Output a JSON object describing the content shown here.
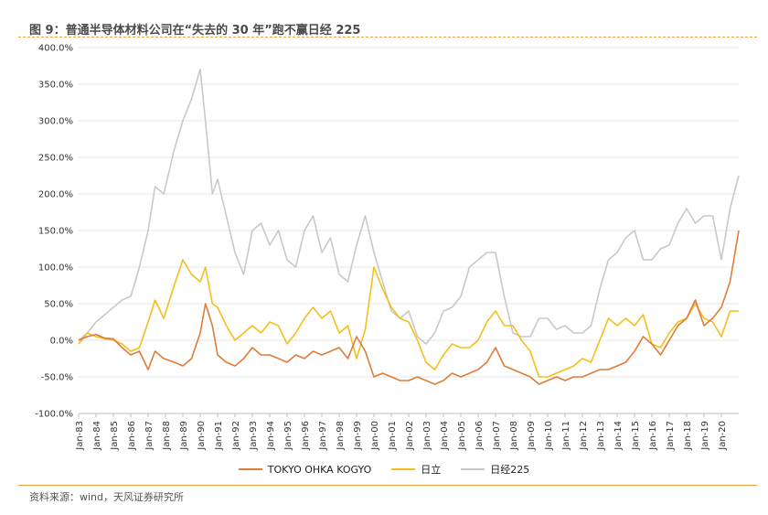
{
  "title": "图 9：普通半导体材料公司在“失去的 30 年”跑不赢日经 225",
  "source": "资料来源：wind，天风证券研究所",
  "chart_data": {
    "type": "line",
    "ylim": [
      -100,
      400
    ],
    "y_ticks": [
      -100,
      -50,
      0,
      50,
      100,
      150,
      200,
      250,
      300,
      350,
      400
    ],
    "y_tick_labels": [
      "-100.0%",
      "-50.0%",
      "0.0%",
      "50.0%",
      "100.0%",
      "150.0%",
      "200.0%",
      "250.0%",
      "300.0%",
      "350.0%",
      "400.0%"
    ],
    "x_tick_labels": [
      "Jan-83",
      "Jan-84",
      "Jan-85",
      "Jan-86",
      "Jan-87",
      "Jan-88",
      "Jan-89",
      "Jan-90",
      "Jan-91",
      "Jan-92",
      "Jan-93",
      "Jan-94",
      "Jan-95",
      "Jan-96",
      "Jan-97",
      "Jan-98",
      "Jan-99",
      "Jan-00",
      "Jan-01",
      "Jan-02",
      "Jan-03",
      "Jan-04",
      "Jan-05",
      "Jan-06",
      "Jan-07",
      "Jan-08",
      "Jan-09",
      "Jan-10",
      "Jan-11",
      "Jan-12",
      "Jan-13",
      "Jan-14",
      "Jan-15",
      "Jan-16",
      "Jan-17",
      "Jan-18",
      "Jan-19",
      "Jan-20"
    ],
    "grid": true,
    "legend_position": "bottom",
    "series": [
      {
        "name": "TOKYO OHKA KOGYO",
        "color": "#e07b39",
        "x": [
          1983.0,
          1983.5,
          1984.0,
          1984.5,
          1985.0,
          1985.5,
          1986.0,
          1986.5,
          1987.0,
          1987.4,
          1987.9,
          1988.5,
          1989.0,
          1989.5,
          1990.0,
          1990.3,
          1990.7,
          1991.0,
          1991.5,
          1992.0,
          1992.5,
          1993.0,
          1993.5,
          1994.0,
          1994.5,
          1995.0,
          1995.5,
          1996.0,
          1996.5,
          1997.0,
          1997.5,
          1998.0,
          1998.5,
          1999.0,
          1999.5,
          2000.0,
          2000.5,
          2001.0,
          2001.5,
          2002.0,
          2002.5,
          2003.0,
          2003.5,
          2004.0,
          2004.5,
          2005.0,
          2005.5,
          2006.0,
          2006.5,
          2007.0,
          2007.5,
          2008.0,
          2008.5,
          2009.0,
          2009.5,
          2010.0,
          2010.5,
          2011.0,
          2011.5,
          2012.0,
          2012.5,
          2013.0,
          2013.5,
          2014.0,
          2014.5,
          2015.0,
          2015.5,
          2016.0,
          2016.5,
          2017.0,
          2017.5,
          2018.0,
          2018.5,
          2019.0,
          2019.5,
          2020.0,
          2020.5,
          2021.0
        ],
        "values": [
          0,
          5,
          8,
          3,
          2,
          -10,
          -20,
          -15,
          -40,
          -15,
          -25,
          -30,
          -35,
          -25,
          10,
          50,
          20,
          -20,
          -30,
          -35,
          -25,
          -10,
          -20,
          -20,
          -25,
          -30,
          -20,
          -25,
          -15,
          -20,
          -15,
          -10,
          -25,
          5,
          -15,
          -50,
          -45,
          -50,
          -55,
          -55,
          -50,
          -55,
          -60,
          -55,
          -45,
          -50,
          -45,
          -40,
          -30,
          -10,
          -35,
          -40,
          -45,
          -50,
          -60,
          -55,
          -50,
          -55,
          -50,
          -50,
          -45,
          -40,
          -40,
          -35,
          -30,
          -15,
          5,
          -5,
          -20,
          0,
          20,
          30,
          55,
          20,
          30,
          45,
          80,
          150
        ]
      },
      {
        "name": "日立",
        "color": "#f5be1a",
        "x": [
          1983.0,
          1983.5,
          1984.0,
          1984.5,
          1985.0,
          1985.5,
          1986.0,
          1986.5,
          1987.0,
          1987.4,
          1987.9,
          1988.5,
          1989.0,
          1989.5,
          1990.0,
          1990.3,
          1990.7,
          1991.0,
          1991.5,
          1992.0,
          1992.5,
          1993.0,
          1993.5,
          1994.0,
          1994.5,
          1995.0,
          1995.5,
          1996.0,
          1996.5,
          1997.0,
          1997.5,
          1998.0,
          1998.5,
          1999.0,
          1999.5,
          2000.0,
          2000.5,
          2001.0,
          2001.5,
          2002.0,
          2002.5,
          2003.0,
          2003.5,
          2004.0,
          2004.5,
          2005.0,
          2005.5,
          2006.0,
          2006.5,
          2007.0,
          2007.5,
          2008.0,
          2008.5,
          2009.0,
          2009.5,
          2010.0,
          2010.5,
          2011.0,
          2011.5,
          2012.0,
          2012.5,
          2013.0,
          2013.5,
          2014.0,
          2014.5,
          2015.0,
          2015.5,
          2016.0,
          2016.5,
          2017.0,
          2017.5,
          2018.0,
          2018.5,
          2019.0,
          2019.5,
          2020.0,
          2020.5,
          2021.0
        ],
        "values": [
          -5,
          10,
          5,
          2,
          0,
          -5,
          -15,
          -10,
          25,
          55,
          30,
          75,
          110,
          90,
          80,
          100,
          50,
          45,
          20,
          0,
          10,
          20,
          10,
          25,
          20,
          -5,
          10,
          30,
          45,
          30,
          40,
          10,
          20,
          -25,
          15,
          100,
          70,
          45,
          30,
          25,
          0,
          -30,
          -40,
          -20,
          -5,
          -10,
          -10,
          0,
          25,
          40,
          20,
          20,
          0,
          -15,
          -50,
          -50,
          -45,
          -40,
          -35,
          -25,
          -30,
          0,
          30,
          20,
          30,
          20,
          35,
          -5,
          -10,
          10,
          25,
          30,
          50,
          30,
          25,
          5,
          40,
          40
        ]
      },
      {
        "name": "日经225",
        "color": "#c8c8c8",
        "x": [
          1983.0,
          1983.5,
          1984.0,
          1984.5,
          1985.0,
          1985.5,
          1986.0,
          1986.5,
          1987.0,
          1987.4,
          1987.9,
          1988.5,
          1989.0,
          1989.5,
          1990.0,
          1990.3,
          1990.7,
          1991.0,
          1991.5,
          1992.0,
          1992.5,
          1993.0,
          1993.5,
          1994.0,
          1994.5,
          1995.0,
          1995.5,
          1996.0,
          1996.5,
          1997.0,
          1997.5,
          1998.0,
          1998.5,
          1999.0,
          1999.5,
          2000.0,
          2000.5,
          2001.0,
          2001.5,
          2002.0,
          2002.5,
          2003.0,
          2003.5,
          2004.0,
          2004.5,
          2005.0,
          2005.5,
          2006.0,
          2006.5,
          2007.0,
          2007.5,
          2008.0,
          2008.5,
          2009.0,
          2009.5,
          2010.0,
          2010.5,
          2011.0,
          2011.5,
          2012.0,
          2012.5,
          2013.0,
          2013.5,
          2014.0,
          2014.5,
          2015.0,
          2015.5,
          2016.0,
          2016.5,
          2017.0,
          2017.5,
          2018.0,
          2018.5,
          2019.0,
          2019.5,
          2020.0,
          2020.5,
          2021.0
        ],
        "values": [
          0,
          10,
          25,
          35,
          45,
          55,
          60,
          100,
          150,
          210,
          200,
          260,
          300,
          330,
          370,
          300,
          200,
          220,
          170,
          120,
          90,
          150,
          160,
          130,
          150,
          110,
          100,
          150,
          170,
          120,
          140,
          90,
          80,
          130,
          170,
          120,
          80,
          40,
          30,
          40,
          5,
          -5,
          10,
          40,
          45,
          60,
          100,
          110,
          120,
          120,
          60,
          10,
          5,
          5,
          30,
          30,
          15,
          20,
          10,
          10,
          20,
          70,
          110,
          120,
          140,
          150,
          110,
          110,
          125,
          130,
          160,
          180,
          160,
          170,
          170,
          110,
          180,
          225
        ]
      }
    ]
  }
}
